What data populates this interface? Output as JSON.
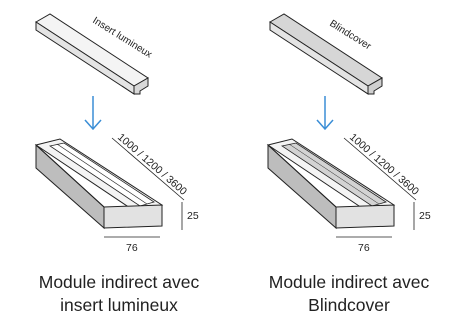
{
  "colors": {
    "arrow": "#3a8ed6",
    "outline": "#222222",
    "face_light": "#f4f4f4",
    "face_mid": "#e2e2e2",
    "face_dark": "#bdbdbd",
    "blindcover_fill": "#d6d6d6"
  },
  "left": {
    "insert_label": "Insert lumineux",
    "length_label": "1000 / 1200 / 3600",
    "height_label": "25",
    "width_label": "76",
    "caption_line1": "Module indirect avec",
    "caption_line2": "insert lumineux"
  },
  "right": {
    "insert_label": "Blindcover",
    "length_label": "1000 / 1200 / 3600",
    "height_label": "25",
    "width_label": "76",
    "caption_line1": "Module indirect avec",
    "caption_line2": "Blindcover"
  }
}
